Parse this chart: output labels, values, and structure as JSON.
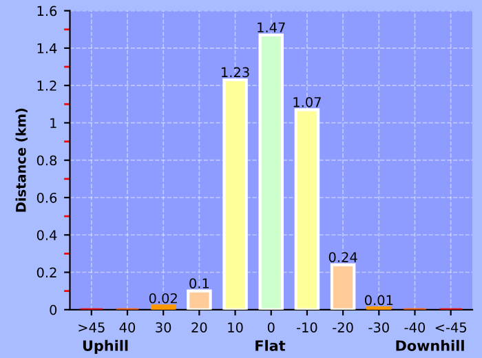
{
  "chart_data": {
    "type": "bar",
    "ylabel": "Distance (km)",
    "categories": [
      ">45",
      "40",
      "30",
      "20",
      "10",
      "0",
      "-10",
      "-20",
      "-30",
      "-40",
      "<-45"
    ],
    "values": [
      0,
      0,
      0.02,
      0.1,
      1.23,
      1.47,
      1.07,
      0.24,
      0.01,
      0,
      0
    ],
    "value_labels": [
      null,
      null,
      "0.02",
      "0.1",
      "1.23",
      "1.47",
      "1.07",
      "0.24",
      "0.01",
      null,
      null
    ],
    "colors": [
      "#ee1111",
      "#ff6600",
      "#ff9900",
      "#ffcc99",
      "#ffff99",
      "#ccffcc",
      "#ffff99",
      "#ffcc99",
      "#ff9900",
      "#ff6600",
      "#ee1111"
    ],
    "ylim": [
      0,
      1.6
    ],
    "yticks": [
      0,
      0.2,
      0.4,
      0.6,
      0.8,
      1,
      1.2,
      1.4,
      1.6
    ],
    "grid": true,
    "annotations": [
      "Uphill",
      "Flat",
      "Downhill"
    ]
  }
}
